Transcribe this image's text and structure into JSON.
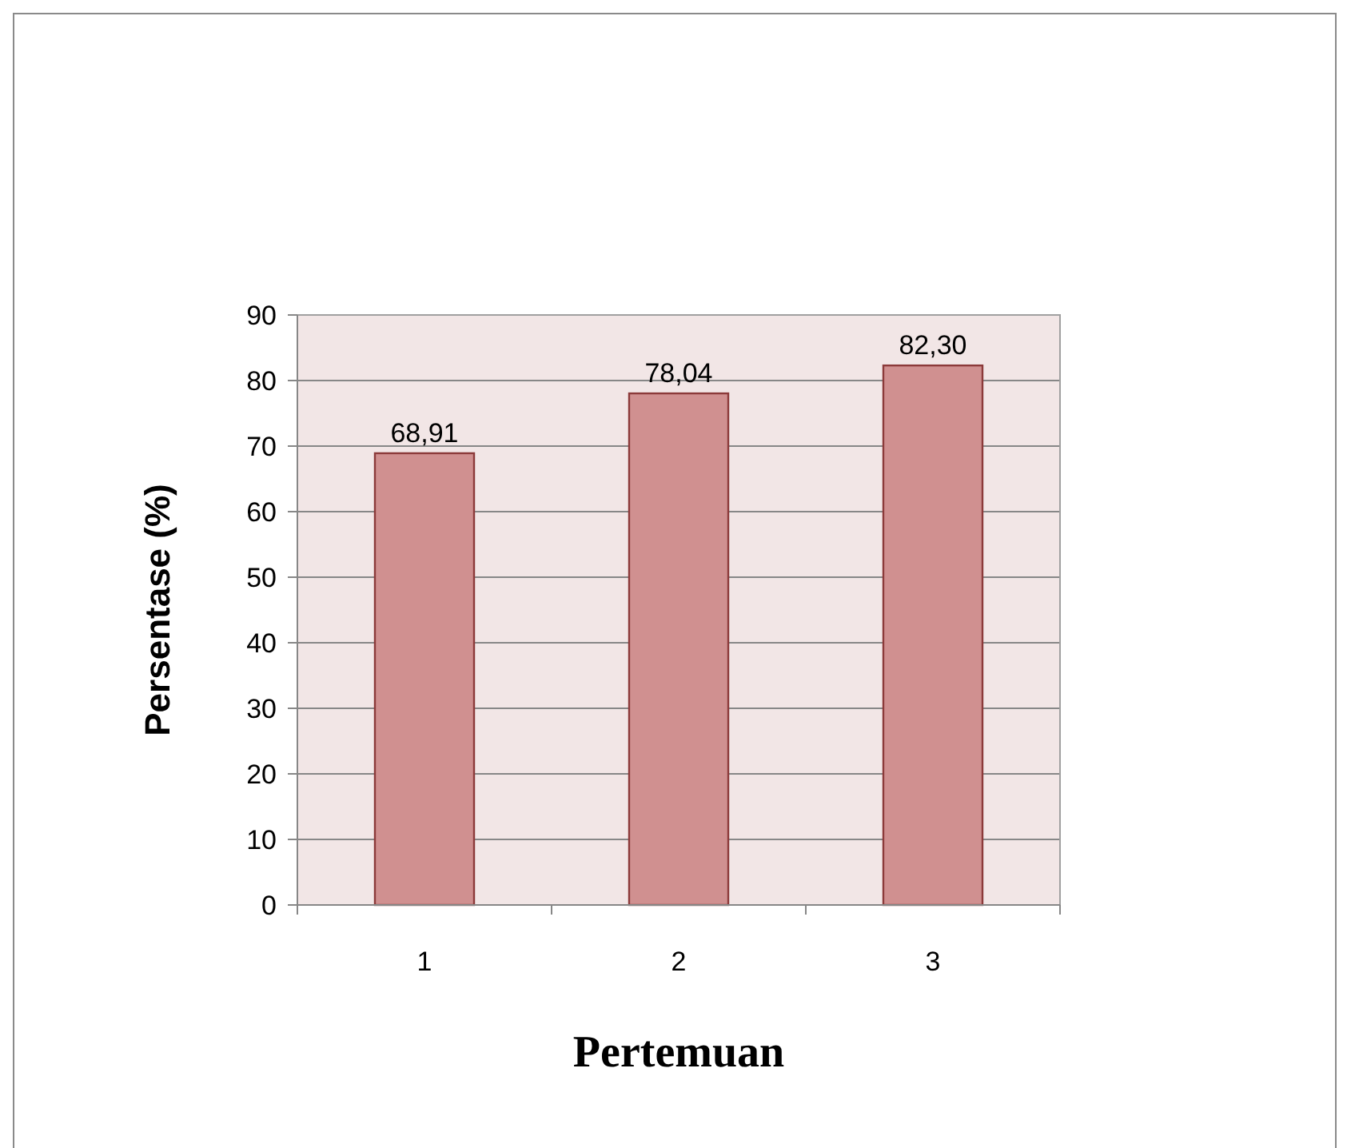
{
  "chart_data": {
    "type": "bar",
    "xlabel": "Pertemuan",
    "ylabel": "Persentase (%)",
    "categories": [
      "1",
      "2",
      "3"
    ],
    "values": [
      68.91,
      78.04,
      82.3
    ],
    "value_labels": [
      "68,91",
      "78,04",
      "82,30"
    ],
    "color": "#d09090",
    "ylim": [
      0,
      90
    ],
    "yticks": [
      0,
      10,
      20,
      30,
      40,
      50,
      60,
      70,
      80,
      90
    ],
    "grid": "y"
  }
}
